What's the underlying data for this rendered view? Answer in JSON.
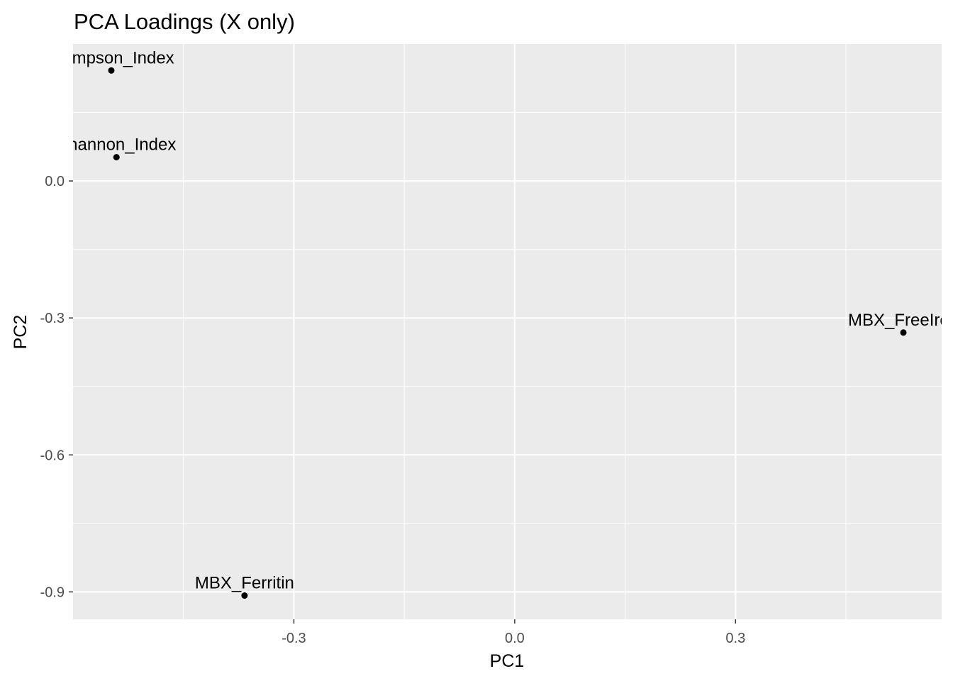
{
  "chart_data": {
    "type": "scatter",
    "title": "PCA Loadings (X only)",
    "xlabel": "PC1",
    "ylabel": "PC2",
    "xlim": [
      -0.6,
      0.58
    ],
    "ylim": [
      -0.96,
      0.3
    ],
    "x_ticks": [
      -0.3,
      0.0,
      0.3
    ],
    "x_tick_labels": [
      "-0.3",
      "0.0",
      "0.3"
    ],
    "y_ticks": [
      0.0,
      -0.3,
      -0.6,
      -0.9
    ],
    "y_tick_labels": [
      "0.0",
      "-0.3",
      "-0.6",
      "-0.9"
    ],
    "grid": true,
    "legend": "none",
    "colors": {
      "panel": "#ebebeb",
      "grid": "#ffffff",
      "point": "#000000"
    },
    "points": [
      {
        "label": "vSimpson_Index",
        "x": -0.548,
        "y": 0.242
      },
      {
        "label": "Shannon_Index",
        "x": -0.541,
        "y": 0.052
      },
      {
        "label": "MBX_FreeIron",
        "x": 0.528,
        "y": -0.332
      },
      {
        "label": "MBX_Ferritin",
        "x": -0.367,
        "y": -0.908
      }
    ]
  }
}
